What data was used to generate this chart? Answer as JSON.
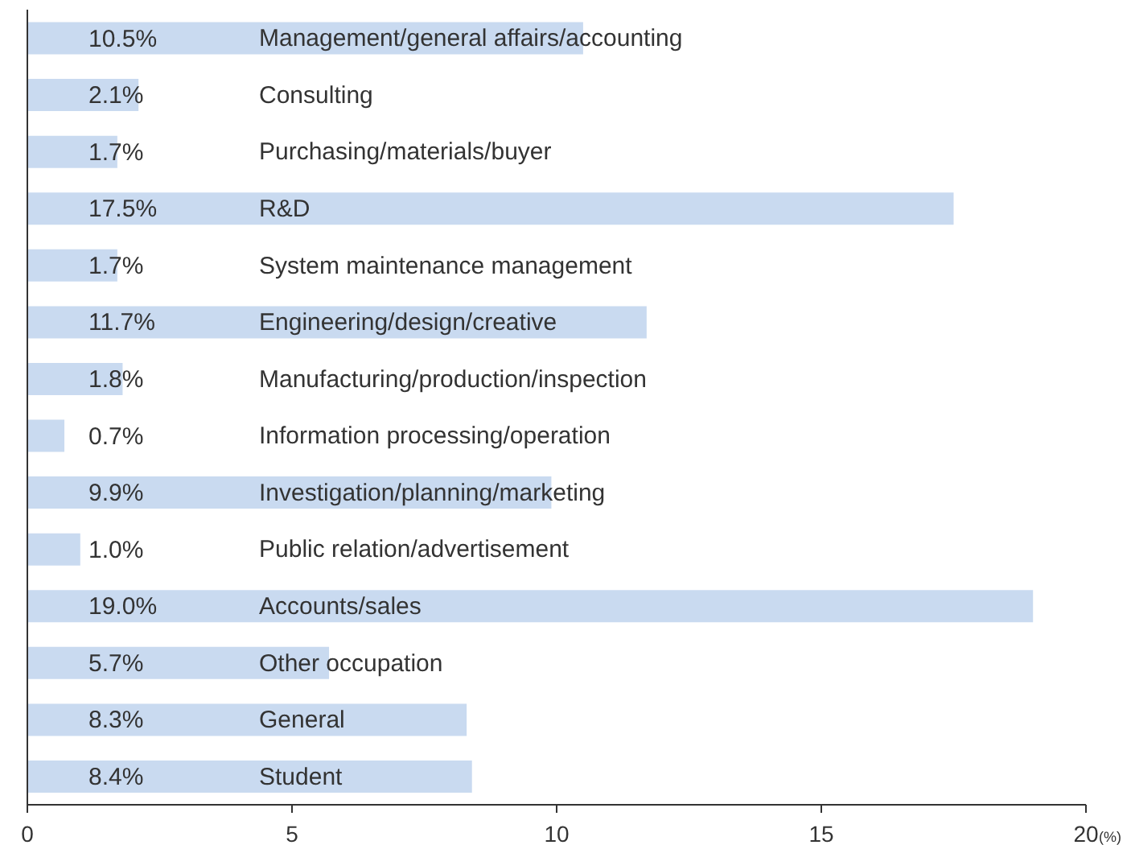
{
  "chart_data": {
    "type": "bar",
    "orientation": "horizontal",
    "xlabel": "(%)",
    "categories": [
      "Management/general affairs/accounting",
      "Consulting",
      "Purchasing/materials/buyer",
      "R&D",
      "System maintenance management",
      "Engineering/design/creative",
      "Manufacturing/production/inspection",
      "Information processing/operation",
      "Investigation/planning/marketing",
      "Public relation/advertisement",
      "Accounts/sales",
      "Other occupation",
      "General",
      "Student"
    ],
    "values": [
      10.5,
      2.1,
      1.7,
      17.5,
      1.7,
      11.7,
      1.8,
      0.7,
      9.9,
      1.0,
      19.0,
      5.7,
      8.3,
      8.4
    ],
    "value_labels": [
      "10.5%",
      "2.1%",
      "1.7%",
      "17.5%",
      "1.7%",
      "11.7%",
      "1.8%",
      "0.7%",
      "9.9%",
      "1.0%",
      "19.0%",
      "5.7%",
      "8.3%",
      "8.4%"
    ],
    "color": "#c9daf0",
    "xlim": [
      0,
      20
    ],
    "xticks": [
      0,
      5,
      10,
      15,
      20
    ],
    "grid": false,
    "legend": false
  }
}
